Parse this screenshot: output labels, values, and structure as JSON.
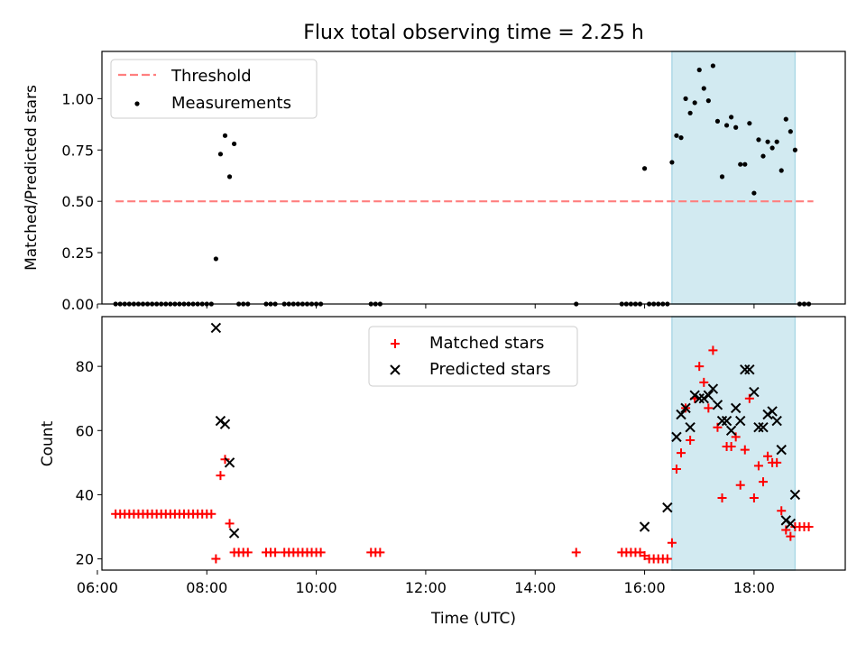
{
  "chart_data": {
    "title": "Flux total observing time = 2.25 h",
    "colors": {
      "threshold": "#ff7f7f",
      "measurements": "#000000",
      "matched": "#ff0000",
      "predicted": "#000000",
      "highlight": "#add8e6"
    },
    "highlight_span": [
      "16:30",
      "18:45"
    ],
    "xlabel": "Time (UTC)",
    "xlim": [
      "06:05",
      "19:40"
    ],
    "x_ticks": [
      "06:00",
      "08:00",
      "10:00",
      "12:00",
      "14:00",
      "16:00",
      "18:00"
    ],
    "charts": [
      {
        "type": "scatter",
        "ylabel": "Matched/Predicted stars",
        "ylim": [
          0,
          1.23
        ],
        "y_ticks": [
          "0.00",
          "0.25",
          "0.50",
          "0.75",
          "1.00"
        ],
        "legend": {
          "placement": "upper-left",
          "entries": [
            "Threshold",
            "Measurements"
          ]
        },
        "threshold": {
          "name": "Threshold",
          "value": 0.5,
          "x_range": [
            "06:20",
            "19:05"
          ]
        },
        "measurements": {
          "name": "Measurements",
          "points": [
            [
              "06:20",
              0
            ],
            [
              "06:25",
              0
            ],
            [
              "06:30",
              0
            ],
            [
              "06:35",
              0
            ],
            [
              "06:40",
              0
            ],
            [
              "06:45",
              0
            ],
            [
              "06:50",
              0
            ],
            [
              "06:55",
              0
            ],
            [
              "07:00",
              0
            ],
            [
              "07:05",
              0
            ],
            [
              "07:10",
              0
            ],
            [
              "07:15",
              0
            ],
            [
              "07:20",
              0
            ],
            [
              "07:25",
              0
            ],
            [
              "07:30",
              0
            ],
            [
              "07:35",
              0
            ],
            [
              "07:40",
              0
            ],
            [
              "07:45",
              0
            ],
            [
              "07:50",
              0
            ],
            [
              "07:55",
              0
            ],
            [
              "08:00",
              0
            ],
            [
              "08:05",
              0
            ],
            [
              "08:10",
              0.22
            ],
            [
              "08:15",
              0.73
            ],
            [
              "08:20",
              0.82
            ],
            [
              "08:25",
              0.62
            ],
            [
              "08:30",
              0.78
            ],
            [
              "08:35",
              0
            ],
            [
              "08:40",
              0
            ],
            [
              "08:45",
              0
            ],
            [
              "09:05",
              0
            ],
            [
              "09:10",
              0
            ],
            [
              "09:15",
              0
            ],
            [
              "09:25",
              0
            ],
            [
              "09:30",
              0
            ],
            [
              "09:35",
              0
            ],
            [
              "09:40",
              0
            ],
            [
              "09:45",
              0
            ],
            [
              "09:50",
              0
            ],
            [
              "09:55",
              0
            ],
            [
              "10:00",
              0
            ],
            [
              "10:05",
              0
            ],
            [
              "11:00",
              0
            ],
            [
              "11:05",
              0
            ],
            [
              "11:10",
              0
            ],
            [
              "14:45",
              0
            ],
            [
              "15:35",
              0
            ],
            [
              "15:40",
              0
            ],
            [
              "15:45",
              0
            ],
            [
              "15:50",
              0
            ],
            [
              "15:55",
              0
            ],
            [
              "16:00",
              0.66
            ],
            [
              "16:05",
              0
            ],
            [
              "16:10",
              0
            ],
            [
              "16:15",
              0
            ],
            [
              "16:20",
              0
            ],
            [
              "16:25",
              0
            ],
            [
              "16:30",
              0.69
            ],
            [
              "16:35",
              0.82
            ],
            [
              "16:40",
              0.81
            ],
            [
              "16:45",
              1.0
            ],
            [
              "16:50",
              0.93
            ],
            [
              "16:55",
              0.98
            ],
            [
              "17:00",
              1.14
            ],
            [
              "17:05",
              1.05
            ],
            [
              "17:10",
              0.99
            ],
            [
              "17:15",
              1.16
            ],
            [
              "17:20",
              0.89
            ],
            [
              "17:25",
              0.62
            ],
            [
              "17:30",
              0.87
            ],
            [
              "17:35",
              0.91
            ],
            [
              "17:40",
              0.86
            ],
            [
              "17:45",
              0.68
            ],
            [
              "17:50",
              0.68
            ],
            [
              "17:55",
              0.88
            ],
            [
              "18:00",
              0.54
            ],
            [
              "18:05",
              0.8
            ],
            [
              "18:10",
              0.72
            ],
            [
              "18:15",
              0.79
            ],
            [
              "18:20",
              0.76
            ],
            [
              "18:25",
              0.79
            ],
            [
              "18:30",
              0.65
            ],
            [
              "18:35",
              0.9
            ],
            [
              "18:40",
              0.84
            ],
            [
              "18:45",
              0.75
            ],
            [
              "18:50",
              0
            ],
            [
              "18:55",
              0
            ],
            [
              "19:00",
              0
            ]
          ]
        }
      },
      {
        "type": "scatter",
        "ylabel": "Count",
        "ylim": [
          16.5,
          95.5
        ],
        "y_ticks": [
          "20",
          "40",
          "60",
          "80"
        ],
        "legend": {
          "placement": "upper-center",
          "entries": [
            "Matched stars",
            "Predicted stars"
          ]
        },
        "series": [
          {
            "name": "Matched stars",
            "marker": "+",
            "points": [
              [
                "06:20",
                34
              ],
              [
                "06:25",
                34
              ],
              [
                "06:30",
                34
              ],
              [
                "06:35",
                34
              ],
              [
                "06:40",
                34
              ],
              [
                "06:45",
                34
              ],
              [
                "06:50",
                34
              ],
              [
                "06:55",
                34
              ],
              [
                "07:00",
                34
              ],
              [
                "07:05",
                34
              ],
              [
                "07:10",
                34
              ],
              [
                "07:15",
                34
              ],
              [
                "07:20",
                34
              ],
              [
                "07:25",
                34
              ],
              [
                "07:30",
                34
              ],
              [
                "07:35",
                34
              ],
              [
                "07:40",
                34
              ],
              [
                "07:45",
                34
              ],
              [
                "07:50",
                34
              ],
              [
                "07:55",
                34
              ],
              [
                "08:00",
                34
              ],
              [
                "08:05",
                34
              ],
              [
                "08:10",
                20
              ],
              [
                "08:15",
                46
              ],
              [
                "08:20",
                51
              ],
              [
                "08:25",
                31
              ],
              [
                "08:30",
                22
              ],
              [
                "08:35",
                22
              ],
              [
                "08:40",
                22
              ],
              [
                "08:45",
                22
              ],
              [
                "09:05",
                22
              ],
              [
                "09:10",
                22
              ],
              [
                "09:15",
                22
              ],
              [
                "09:25",
                22
              ],
              [
                "09:30",
                22
              ],
              [
                "09:35",
                22
              ],
              [
                "09:40",
                22
              ],
              [
                "09:45",
                22
              ],
              [
                "09:50",
                22
              ],
              [
                "09:55",
                22
              ],
              [
                "10:00",
                22
              ],
              [
                "10:05",
                22
              ],
              [
                "11:00",
                22
              ],
              [
                "11:05",
                22
              ],
              [
                "11:10",
                22
              ],
              [
                "14:45",
                22
              ],
              [
                "15:35",
                22
              ],
              [
                "15:40",
                22
              ],
              [
                "15:45",
                22
              ],
              [
                "15:50",
                22
              ],
              [
                "15:55",
                22
              ],
              [
                "16:00",
                21
              ],
              [
                "16:05",
                20
              ],
              [
                "16:10",
                20
              ],
              [
                "16:15",
                20
              ],
              [
                "16:20",
                20
              ],
              [
                "16:25",
                20
              ],
              [
                "16:30",
                25
              ],
              [
                "16:35",
                48
              ],
              [
                "16:40",
                53
              ],
              [
                "16:45",
                67
              ],
              [
                "16:50",
                57
              ],
              [
                "16:55",
                70
              ],
              [
                "17:00",
                80
              ],
              [
                "17:05",
                75
              ],
              [
                "17:10",
                67
              ],
              [
                "17:15",
                85
              ],
              [
                "17:20",
                61
              ],
              [
                "17:25",
                39
              ],
              [
                "17:30",
                55
              ],
              [
                "17:35",
                55
              ],
              [
                "17:40",
                58
              ],
              [
                "17:45",
                43
              ],
              [
                "17:50",
                54
              ],
              [
                "17:55",
                70
              ],
              [
                "18:00",
                39
              ],
              [
                "18:05",
                49
              ],
              [
                "18:10",
                44
              ],
              [
                "18:15",
                52
              ],
              [
                "18:20",
                50
              ],
              [
                "18:25",
                50
              ],
              [
                "18:30",
                35
              ],
              [
                "18:35",
                29
              ],
              [
                "18:40",
                27
              ],
              [
                "18:45",
                30
              ],
              [
                "18:50",
                30
              ],
              [
                "18:55",
                30
              ],
              [
                "19:00",
                30
              ]
            ]
          },
          {
            "name": "Predicted stars",
            "marker": "x",
            "points": [
              [
                "08:10",
                92
              ],
              [
                "08:15",
                63
              ],
              [
                "08:20",
                62
              ],
              [
                "08:25",
                50
              ],
              [
                "08:30",
                28
              ],
              [
                "16:00",
                30
              ],
              [
                "16:25",
                36
              ],
              [
                "16:35",
                58
              ],
              [
                "16:40",
                65
              ],
              [
                "16:45",
                67
              ],
              [
                "16:50",
                61
              ],
              [
                "16:55",
                71
              ],
              [
                "17:00",
                70
              ],
              [
                "17:05",
                70
              ],
              [
                "17:10",
                71
              ],
              [
                "17:15",
                73
              ],
              [
                "17:20",
                68
              ],
              [
                "17:25",
                63
              ],
              [
                "17:30",
                63
              ],
              [
                "17:35",
                60
              ],
              [
                "17:40",
                67
              ],
              [
                "17:45",
                63
              ],
              [
                "17:50",
                79
              ],
              [
                "17:55",
                79
              ],
              [
                "18:00",
                72
              ],
              [
                "18:05",
                61
              ],
              [
                "18:10",
                61
              ],
              [
                "18:15",
                65
              ],
              [
                "18:20",
                66
              ],
              [
                "18:25",
                63
              ],
              [
                "18:30",
                54
              ],
              [
                "18:35",
                32
              ],
              [
                "18:40",
                31
              ],
              [
                "18:45",
                40
              ]
            ]
          }
        ]
      }
    ]
  }
}
